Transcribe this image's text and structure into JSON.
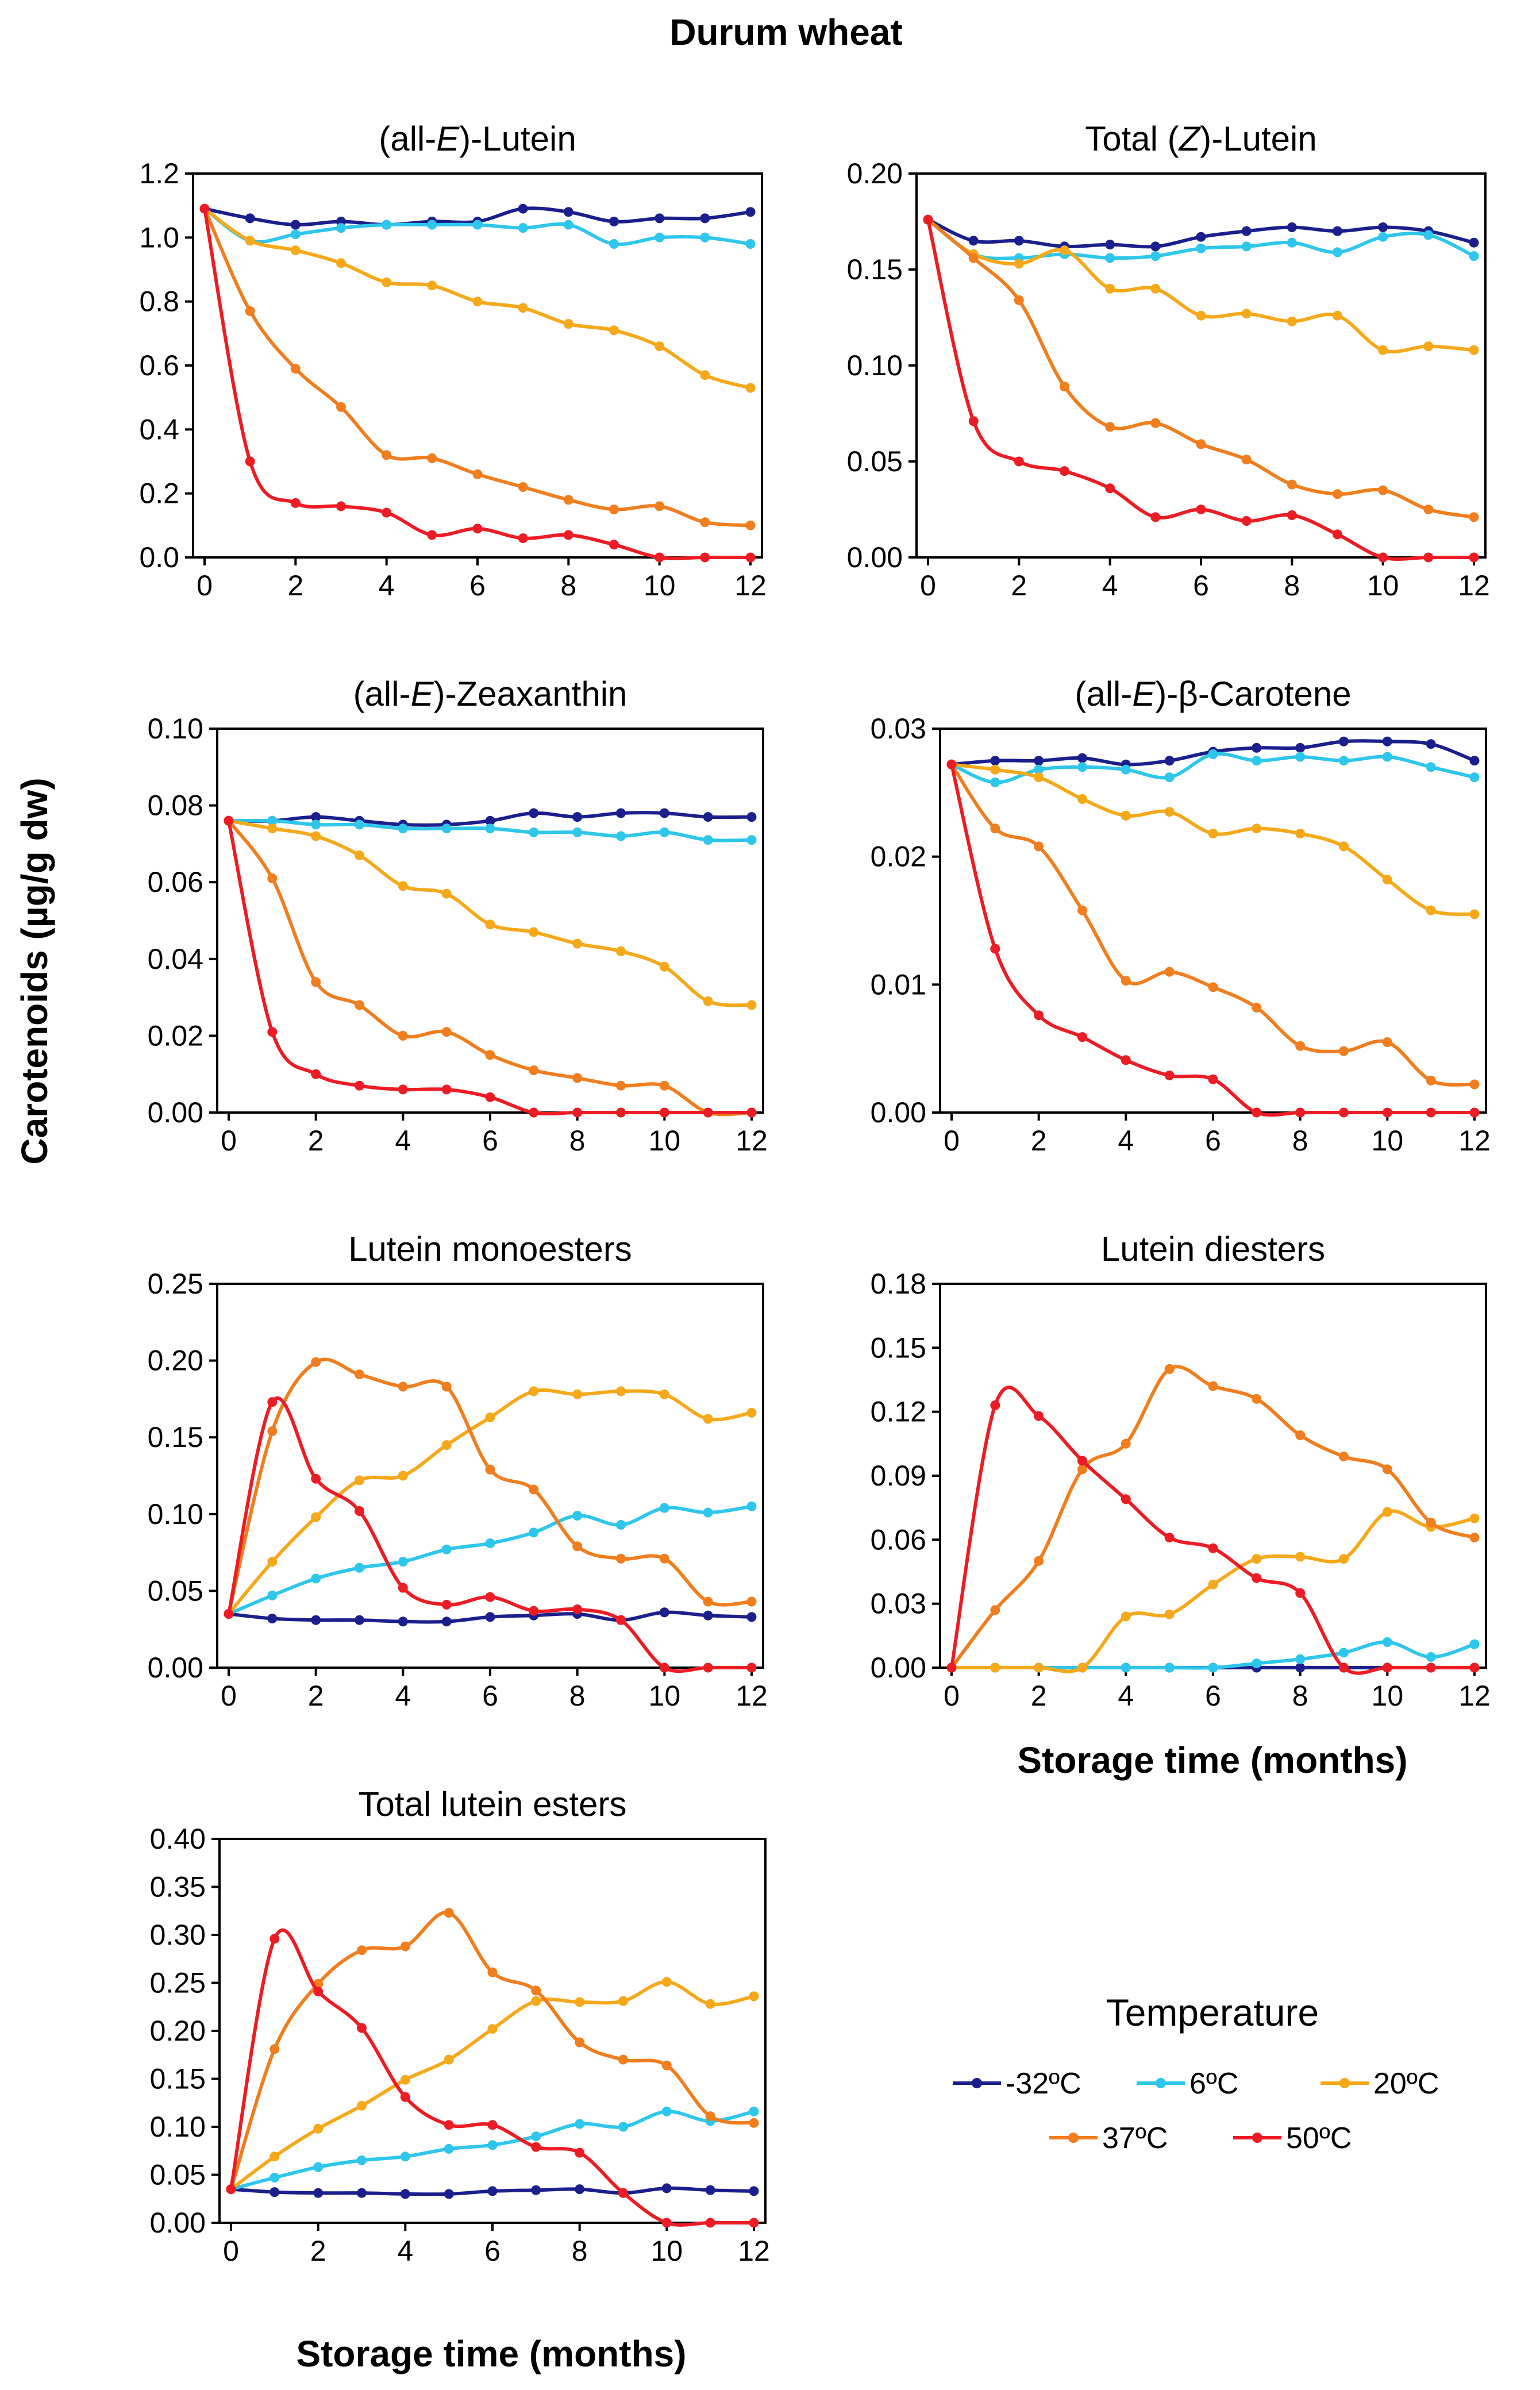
{
  "title": "Durum wheat",
  "ylabel": "Carotenoids (µg/g dw)",
  "xlabel": "Storage time (months)",
  "legend": {
    "title": "Temperature",
    "items": [
      {
        "label": "-32ºC",
        "color": "#1a1f8c"
      },
      {
        "label": "6ºC",
        "color": "#2ec6ea"
      },
      {
        "label": "20ºC",
        "color": "#f5a81a"
      },
      {
        "label": "37ºC",
        "color": "#f07d1e"
      },
      {
        "label": "50ºC",
        "color": "#ec1c24"
      }
    ]
  },
  "chart_data": [
    {
      "type": "line",
      "title_parts": [
        "(all-",
        "E",
        ")-Lutein"
      ],
      "x": [
        0,
        1,
        2,
        3,
        4,
        5,
        6,
        7,
        8,
        9,
        10,
        11,
        12
      ],
      "xlim": [
        0,
        12
      ],
      "xticks": [
        "0",
        "2",
        "4",
        "6",
        "8",
        "10",
        "12"
      ],
      "ylim": [
        0,
        1.2
      ],
      "yticks": [
        "0.0",
        "0.2",
        "0.4",
        "0.6",
        "0.8",
        "1.0",
        "1.2"
      ],
      "series": [
        {
          "name": "-32ºC",
          "color": "#1a1f8c",
          "values": [
            1.09,
            1.06,
            1.04,
            1.05,
            1.04,
            1.05,
            1.05,
            1.09,
            1.08,
            1.05,
            1.06,
            1.06,
            1.08
          ]
        },
        {
          "name": "6ºC",
          "color": "#2ec6ea",
          "values": [
            1.09,
            0.99,
            1.01,
            1.03,
            1.04,
            1.04,
            1.04,
            1.03,
            1.04,
            0.98,
            1.0,
            1.0,
            0.98
          ]
        },
        {
          "name": "20ºC",
          "color": "#f5a81a",
          "values": [
            1.09,
            0.99,
            0.96,
            0.92,
            0.86,
            0.85,
            0.8,
            0.78,
            0.73,
            0.71,
            0.66,
            0.57,
            0.53
          ]
        },
        {
          "name": "37ºC",
          "color": "#f07d1e",
          "values": [
            1.09,
            0.77,
            0.59,
            0.47,
            0.32,
            0.31,
            0.26,
            0.22,
            0.18,
            0.15,
            0.16,
            0.11,
            0.1
          ]
        },
        {
          "name": "50ºC",
          "color": "#ec1c24",
          "values": [
            1.09,
            0.3,
            0.17,
            0.16,
            0.14,
            0.07,
            0.09,
            0.06,
            0.07,
            0.04,
            0.0,
            0.0,
            0.0
          ]
        }
      ]
    },
    {
      "type": "line",
      "title_parts": [
        "Total (",
        "Z",
        ")-Lutein"
      ],
      "x": [
        0,
        1,
        2,
        3,
        4,
        5,
        6,
        7,
        8,
        9,
        10,
        11,
        12
      ],
      "xlim": [
        0,
        12
      ],
      "xticks": [
        "0",
        "2",
        "4",
        "6",
        "8",
        "10",
        "12"
      ],
      "ylim": [
        0,
        0.2
      ],
      "yticks": [
        "0.00",
        "0.05",
        "0.10",
        "0.15",
        "0.20"
      ],
      "series": [
        {
          "name": "-32ºC",
          "color": "#1a1f8c",
          "values": [
            0.176,
            0.165,
            0.165,
            0.162,
            0.163,
            0.162,
            0.167,
            0.17,
            0.172,
            0.17,
            0.172,
            0.17,
            0.164
          ]
        },
        {
          "name": "6ºC",
          "color": "#2ec6ea",
          "values": [
            0.176,
            0.158,
            0.156,
            0.158,
            0.156,
            0.157,
            0.161,
            0.162,
            0.164,
            0.159,
            0.167,
            0.168,
            0.157
          ]
        },
        {
          "name": "20ºC",
          "color": "#f5a81a",
          "values": [
            0.176,
            0.158,
            0.153,
            0.16,
            0.14,
            0.14,
            0.126,
            0.127,
            0.123,
            0.126,
            0.108,
            0.11,
            0.108
          ]
        },
        {
          "name": "37ºC",
          "color": "#f07d1e",
          "values": [
            0.176,
            0.156,
            0.134,
            0.089,
            0.068,
            0.07,
            0.059,
            0.051,
            0.038,
            0.033,
            0.035,
            0.025,
            0.021
          ]
        },
        {
          "name": "50ºC",
          "color": "#ec1c24",
          "values": [
            0.176,
            0.071,
            0.05,
            0.045,
            0.036,
            0.021,
            0.025,
            0.019,
            0.022,
            0.012,
            0.0,
            0.0,
            0.0
          ]
        }
      ]
    },
    {
      "type": "line",
      "title_parts": [
        "(all-",
        "E",
        ")-Zeaxanthin"
      ],
      "x": [
        0,
        1,
        2,
        3,
        4,
        5,
        6,
        7,
        8,
        9,
        10,
        11,
        12
      ],
      "xlim": [
        0,
        12
      ],
      "xticks": [
        "0",
        "2",
        "4",
        "6",
        "8",
        "10",
        "12"
      ],
      "ylim": [
        0,
        0.1
      ],
      "yticks": [
        "0.00",
        "0.02",
        "0.04",
        "0.06",
        "0.08",
        "0.10"
      ],
      "series": [
        {
          "name": "-32ºC",
          "color": "#1a1f8c",
          "values": [
            0.076,
            0.076,
            0.077,
            0.076,
            0.075,
            0.075,
            0.076,
            0.078,
            0.077,
            0.078,
            0.078,
            0.077,
            0.077
          ]
        },
        {
          "name": "6ºC",
          "color": "#2ec6ea",
          "values": [
            0.076,
            0.076,
            0.075,
            0.075,
            0.074,
            0.074,
            0.074,
            0.073,
            0.073,
            0.072,
            0.073,
            0.071,
            0.071
          ]
        },
        {
          "name": "20ºC",
          "color": "#f5a81a",
          "values": [
            0.076,
            0.074,
            0.072,
            0.067,
            0.059,
            0.057,
            0.049,
            0.047,
            0.044,
            0.042,
            0.038,
            0.029,
            0.028
          ]
        },
        {
          "name": "37ºC",
          "color": "#f07d1e",
          "values": [
            0.076,
            0.061,
            0.034,
            0.028,
            0.02,
            0.021,
            0.015,
            0.011,
            0.009,
            0.007,
            0.007,
            0.0,
            0.0
          ]
        },
        {
          "name": "50ºC",
          "color": "#ec1c24",
          "values": [
            0.076,
            0.021,
            0.01,
            0.007,
            0.006,
            0.006,
            0.004,
            0.0,
            0.0,
            0.0,
            0.0,
            0.0,
            0.0
          ]
        }
      ]
    },
    {
      "type": "line",
      "title_parts": [
        "(all-",
        "E",
        ")-β-Carotene"
      ],
      "x": [
        0,
        1,
        2,
        3,
        4,
        5,
        6,
        7,
        8,
        9,
        10,
        11,
        12
      ],
      "xlim": [
        0,
        12
      ],
      "xticks": [
        "0",
        "2",
        "4",
        "6",
        "8",
        "10",
        "12"
      ],
      "ylim": [
        0,
        0.03
      ],
      "yticks": [
        "0.00",
        "0.01",
        "0.02",
        "0.03"
      ],
      "series": [
        {
          "name": "-32ºC",
          "color": "#1a1f8c",
          "values": [
            0.0272,
            0.0275,
            0.0275,
            0.0277,
            0.0272,
            0.0275,
            0.0282,
            0.0285,
            0.0285,
            0.029,
            0.029,
            0.0288,
            0.0275
          ]
        },
        {
          "name": "6ºC",
          "color": "#2ec6ea",
          "values": [
            0.0272,
            0.0258,
            0.0268,
            0.027,
            0.0268,
            0.0262,
            0.028,
            0.0275,
            0.0278,
            0.0275,
            0.0278,
            0.027,
            0.0262
          ]
        },
        {
          "name": "20ºC",
          "color": "#f5a81a",
          "values": [
            0.0272,
            0.0268,
            0.0262,
            0.0245,
            0.0232,
            0.0235,
            0.0218,
            0.0222,
            0.0218,
            0.0208,
            0.0182,
            0.0158,
            0.0155
          ]
        },
        {
          "name": "37ºC",
          "color": "#f07d1e",
          "values": [
            0.0272,
            0.0222,
            0.0208,
            0.0158,
            0.0103,
            0.011,
            0.0098,
            0.0082,
            0.0052,
            0.0048,
            0.0055,
            0.0025,
            0.0022
          ]
        },
        {
          "name": "50ºC",
          "color": "#ec1c24",
          "values": [
            0.0272,
            0.0128,
            0.0076,
            0.0059,
            0.0041,
            0.0029,
            0.0026,
            0.0,
            0.0,
            0.0,
            0.0,
            0.0,
            0.0
          ]
        }
      ]
    },
    {
      "type": "line",
      "title_parts": [
        "Lutein monoesters"
      ],
      "x": [
        0,
        1,
        2,
        3,
        4,
        5,
        6,
        7,
        8,
        9,
        10,
        11,
        12
      ],
      "xlim": [
        0,
        12
      ],
      "xticks": [
        "0",
        "2",
        "4",
        "6",
        "8",
        "10",
        "12"
      ],
      "ylim": [
        0,
        0.25
      ],
      "yticks": [
        "0.00",
        "0.05",
        "0.10",
        "0.15",
        "0.20",
        "0.25"
      ],
      "series": [
        {
          "name": "-32ºC",
          "color": "#1a1f8c",
          "values": [
            0.035,
            0.032,
            0.031,
            0.031,
            0.03,
            0.03,
            0.033,
            0.034,
            0.035,
            0.031,
            0.036,
            0.034,
            0.033
          ]
        },
        {
          "name": "6ºC",
          "color": "#2ec6ea",
          "values": [
            0.035,
            0.047,
            0.058,
            0.065,
            0.069,
            0.077,
            0.081,
            0.088,
            0.099,
            0.093,
            0.104,
            0.101,
            0.105
          ]
        },
        {
          "name": "20ºC",
          "color": "#f5a81a",
          "values": [
            0.035,
            0.069,
            0.098,
            0.122,
            0.125,
            0.145,
            0.163,
            0.18,
            0.178,
            0.18,
            0.178,
            0.162,
            0.166
          ]
        },
        {
          "name": "37ºC",
          "color": "#f07d1e",
          "values": [
            0.035,
            0.154,
            0.199,
            0.191,
            0.183,
            0.183,
            0.129,
            0.116,
            0.079,
            0.071,
            0.071,
            0.043,
            0.043
          ]
        },
        {
          "name": "50ºC",
          "color": "#ec1c24",
          "values": [
            0.035,
            0.173,
            0.123,
            0.102,
            0.052,
            0.041,
            0.046,
            0.037,
            0.038,
            0.031,
            0.0,
            0.0,
            0.0
          ]
        }
      ]
    },
    {
      "type": "line",
      "title_parts": [
        "Lutein diesters"
      ],
      "x": [
        0,
        1,
        2,
        3,
        4,
        5,
        6,
        7,
        8,
        9,
        10,
        11,
        12
      ],
      "xlim": [
        0,
        12
      ],
      "xticks": [
        "0",
        "2",
        "4",
        "6",
        "8",
        "10",
        "12"
      ],
      "ylim": [
        0,
        0.18
      ],
      "yticks": [
        "0.00",
        "0.03",
        "0.06",
        "0.09",
        "0.12",
        "0.15",
        "0.18"
      ],
      "series": [
        {
          "name": "-32ºC",
          "color": "#1a1f8c",
          "values": [
            0.0,
            0.0,
            0.0,
            0.0,
            0.0,
            0.0,
            0.0,
            0.0,
            0.0,
            0.0,
            0.0,
            0.0,
            0.0
          ]
        },
        {
          "name": "6ºC",
          "color": "#2ec6ea",
          "values": [
            0.0,
            0.0,
            0.0,
            0.0,
            0.0,
            0.0,
            0.0,
            0.002,
            0.004,
            0.007,
            0.012,
            0.005,
            0.011
          ]
        },
        {
          "name": "20ºC",
          "color": "#f5a81a",
          "values": [
            0.0,
            0.0,
            0.0,
            0.0,
            0.024,
            0.025,
            0.039,
            0.051,
            0.052,
            0.051,
            0.073,
            0.066,
            0.07
          ]
        },
        {
          "name": "37ºC",
          "color": "#f07d1e",
          "values": [
            0.0,
            0.027,
            0.05,
            0.093,
            0.105,
            0.14,
            0.132,
            0.126,
            0.109,
            0.099,
            0.093,
            0.068,
            0.061
          ]
        },
        {
          "name": "50ºC",
          "color": "#ec1c24",
          "values": [
            0.0,
            0.123,
            0.118,
            0.097,
            0.079,
            0.061,
            0.056,
            0.042,
            0.035,
            0.0,
            0.0,
            0.0,
            0.0
          ]
        }
      ]
    },
    {
      "type": "line",
      "title_parts": [
        "Total lutein esters"
      ],
      "x": [
        0,
        1,
        2,
        3,
        4,
        5,
        6,
        7,
        8,
        9,
        10,
        11,
        12
      ],
      "xlim": [
        0,
        12
      ],
      "xticks": [
        "0",
        "2",
        "4",
        "6",
        "8",
        "10",
        "12"
      ],
      "ylim": [
        0,
        0.4
      ],
      "yticks": [
        "0.00",
        "0.05",
        "0.10",
        "0.15",
        "0.20",
        "0.25",
        "0.30",
        "0.35",
        "0.40"
      ],
      "series": [
        {
          "name": "-32ºC",
          "color": "#1a1f8c",
          "values": [
            0.035,
            0.032,
            0.031,
            0.031,
            0.03,
            0.03,
            0.033,
            0.034,
            0.035,
            0.031,
            0.036,
            0.034,
            0.033
          ]
        },
        {
          "name": "6ºC",
          "color": "#2ec6ea",
          "values": [
            0.035,
            0.047,
            0.058,
            0.065,
            0.069,
            0.077,
            0.081,
            0.09,
            0.103,
            0.1,
            0.116,
            0.106,
            0.116
          ]
        },
        {
          "name": "20ºC",
          "color": "#f5a81a",
          "values": [
            0.035,
            0.069,
            0.098,
            0.122,
            0.149,
            0.17,
            0.202,
            0.231,
            0.23,
            0.231,
            0.251,
            0.228,
            0.236
          ]
        },
        {
          "name": "37ºC",
          "color": "#f07d1e",
          "values": [
            0.035,
            0.181,
            0.249,
            0.284,
            0.288,
            0.323,
            0.261,
            0.242,
            0.188,
            0.17,
            0.164,
            0.111,
            0.104
          ]
        },
        {
          "name": "50ºC",
          "color": "#ec1c24",
          "values": [
            0.035,
            0.296,
            0.241,
            0.203,
            0.131,
            0.102,
            0.102,
            0.079,
            0.073,
            0.031,
            0.0,
            0.0,
            0.0
          ]
        }
      ]
    }
  ]
}
